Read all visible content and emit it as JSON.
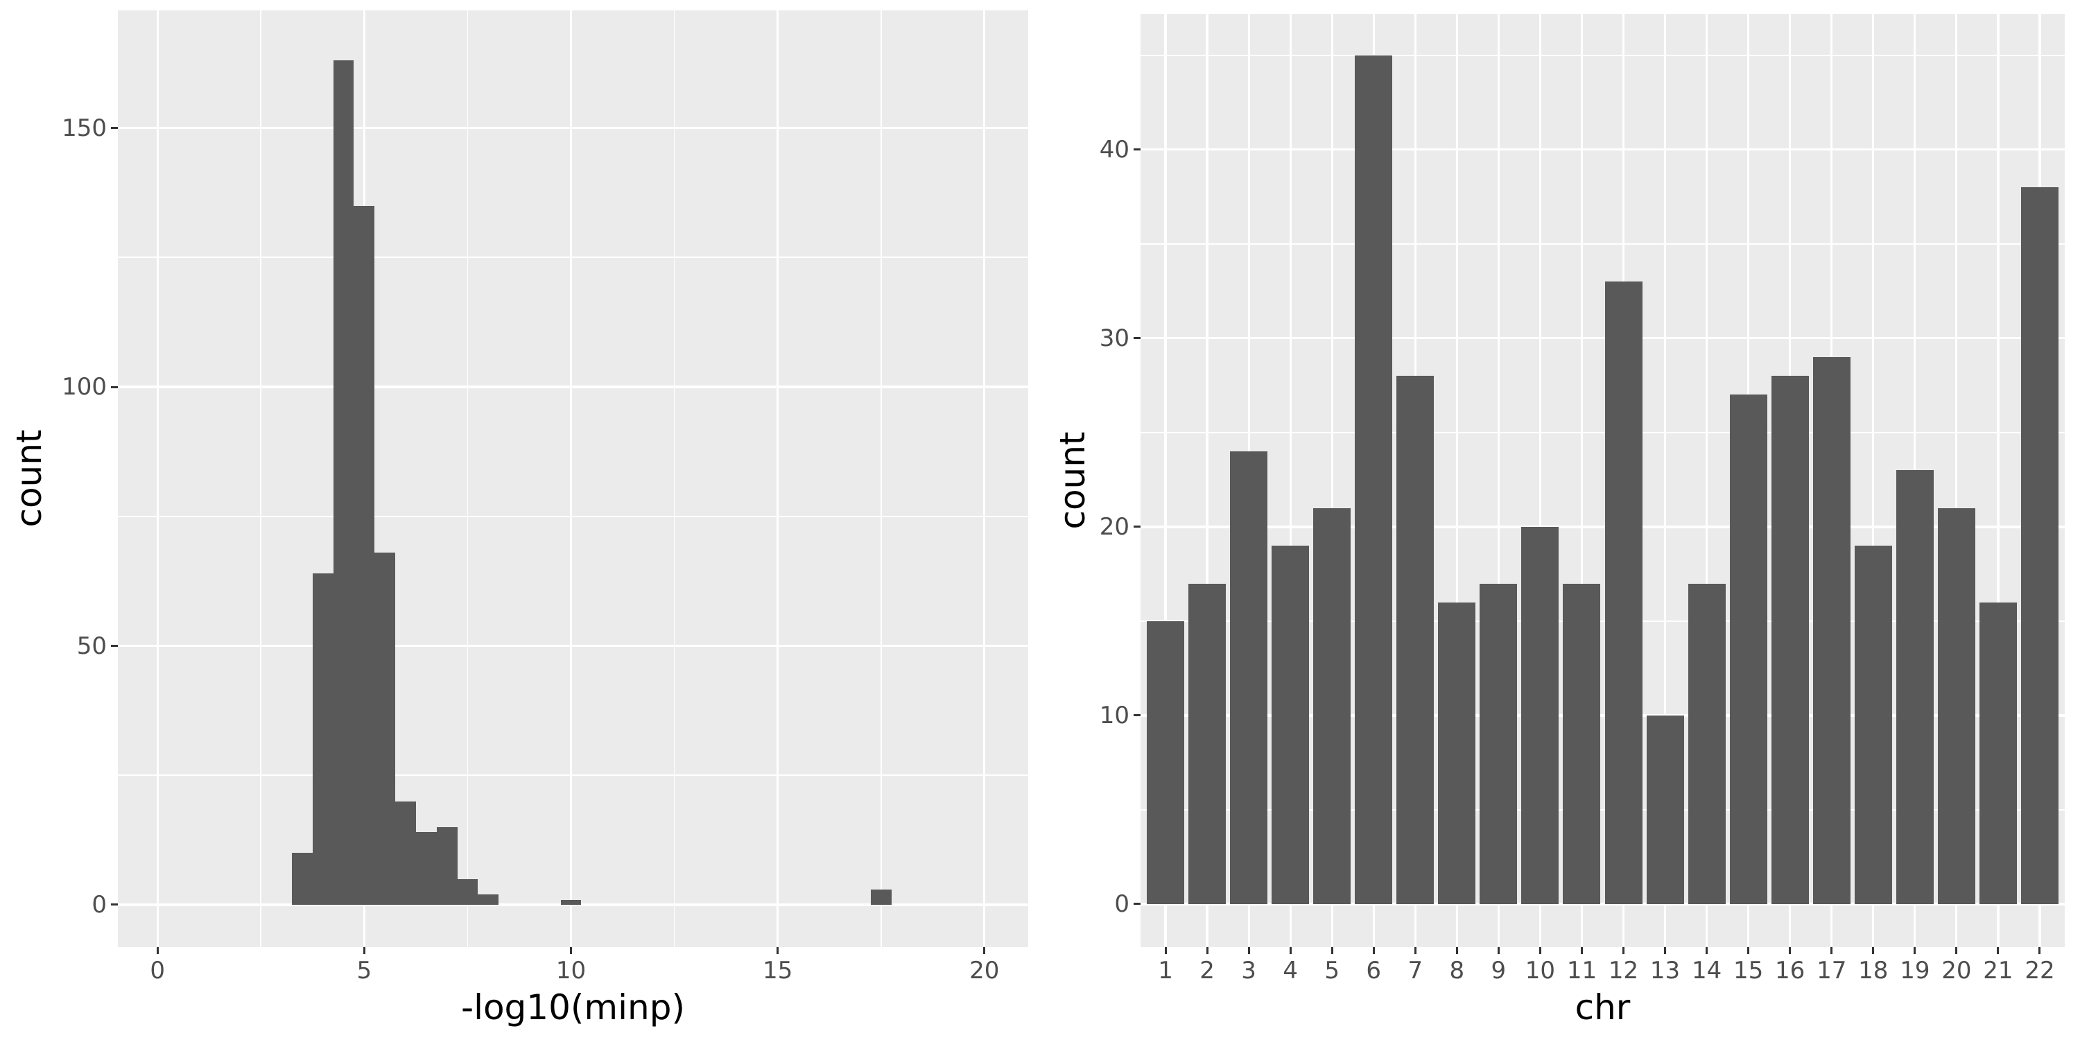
{
  "colors": {
    "background": "#FFFFFF",
    "panel_background": "#EBEBEB",
    "gridline": "#FFFFFF",
    "bar_fill": "#595959",
    "tick_label_text": "#4D4D4D",
    "axis_title_text": "#000000",
    "tick_mark": "#333333"
  },
  "chart_data": [
    {
      "type": "histogram",
      "title": "",
      "xlabel": "-log10(minp)",
      "ylabel": "count",
      "bin_start": 3.25,
      "bin_width": 0.5,
      "bin_counts": [
        10,
        64,
        163,
        135,
        68,
        20,
        14,
        15,
        5,
        2,
        0,
        0,
        0,
        1,
        0,
        0,
        0,
        0,
        0,
        0,
        0,
        0,
        0,
        0,
        0,
        0,
        0,
        0,
        3
      ],
      "x_ticks": [
        0,
        5,
        10,
        15,
        20
      ],
      "x_tick_labels": [
        "0",
        "5",
        "10",
        "15",
        "20"
      ],
      "x_minor_ticks": [
        2.5,
        7.5,
        12.5,
        17.5
      ],
      "y_ticks": [
        0,
        50,
        100,
        150
      ],
      "y_tick_labels": [
        "0",
        "50",
        "100",
        "150"
      ],
      "y_minor_ticks": [
        25,
        75,
        125
      ],
      "xlim": [
        -0.96,
        21.06
      ],
      "ylim": [
        -8.17,
        172.7
      ],
      "grid": "on",
      "legend": "none"
    },
    {
      "type": "bar",
      "title": "",
      "xlabel": "chr",
      "ylabel": "count",
      "categories": [
        "1",
        "2",
        "3",
        "4",
        "5",
        "6",
        "7",
        "8",
        "9",
        "10",
        "11",
        "12",
        "13",
        "14",
        "15",
        "16",
        "17",
        "18",
        "19",
        "20",
        "21",
        "22"
      ],
      "values": [
        15,
        17,
        24,
        19,
        21,
        45,
        28,
        16,
        17,
        20,
        17,
        33,
        10,
        17,
        27,
        28,
        29,
        19,
        23,
        21,
        16,
        38
      ],
      "y_ticks": [
        0,
        10,
        20,
        30,
        40
      ],
      "y_tick_labels": [
        "0",
        "10",
        "20",
        "30",
        "40"
      ],
      "y_minor_ticks": [
        5,
        15,
        25,
        35,
        45
      ],
      "bar_relative_width": 0.9,
      "xlim": [
        0.4,
        22.6
      ],
      "ylim": [
        -2.28,
        47.2
      ],
      "grid": "on",
      "legend": "none"
    }
  ]
}
